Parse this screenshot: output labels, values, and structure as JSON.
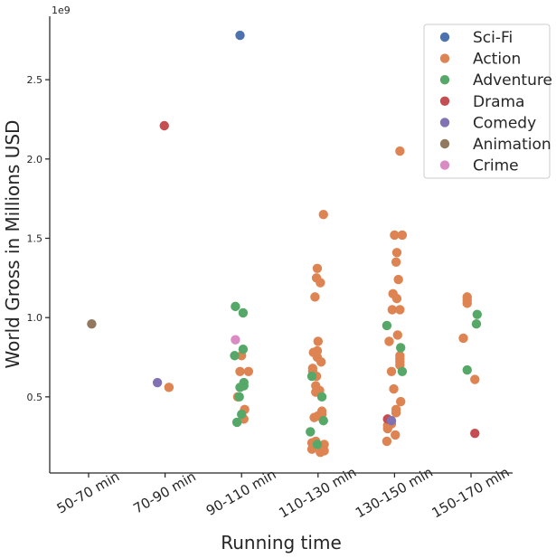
{
  "chart_data": {
    "type": "scatter",
    "style": "strip plot with jitter",
    "xlabel": "Running time",
    "ylabel": "World Gross in Millions USD",
    "y_offset_label": "1e9",
    "ylim": [
      0.02,
      2.9
    ],
    "y_unit_multiplier": 1000000000,
    "yticks": [
      0.5,
      1.0,
      1.5,
      2.0,
      2.5
    ],
    "ytick_labels": [
      "0.5",
      "1.0",
      "1.5",
      "2.0",
      "2.5"
    ],
    "categories": [
      "50-70 min",
      "70-90 min",
      "90-110 min",
      "110-130 min",
      "130-150 min",
      "150-170 min"
    ],
    "grid": false,
    "legend_position": "top-right",
    "colors": {
      "Sci-Fi": "#4c72b0",
      "Action": "#dd8452",
      "Adventure": "#55a868",
      "Drama": "#c44e52",
      "Comedy": "#8172b3",
      "Animation": "#937860",
      "Crime": "#da8bc3"
    },
    "series": [
      {
        "name": "Sci-Fi",
        "points": [
          {
            "x": "90-110 min",
            "y": 2.78
          }
        ]
      },
      {
        "name": "Action",
        "points": [
          {
            "x": "70-90 min",
            "y": 0.56
          },
          {
            "x": "90-110 min",
            "y": 0.76
          },
          {
            "x": "90-110 min",
            "y": 0.66
          },
          {
            "x": "90-110 min",
            "y": 0.66
          },
          {
            "x": "90-110 min",
            "y": 0.5
          },
          {
            "x": "90-110 min",
            "y": 0.42
          },
          {
            "x": "90-110 min",
            "y": 0.36
          },
          {
            "x": "110-130 min",
            "y": 1.65
          },
          {
            "x": "110-130 min",
            "y": 1.31
          },
          {
            "x": "110-130 min",
            "y": 1.25
          },
          {
            "x": "110-130 min",
            "y": 1.22
          },
          {
            "x": "110-130 min",
            "y": 1.13
          },
          {
            "x": "110-130 min",
            "y": 0.85
          },
          {
            "x": "110-130 min",
            "y": 0.79
          },
          {
            "x": "110-130 min",
            "y": 0.78
          },
          {
            "x": "110-130 min",
            "y": 0.75
          },
          {
            "x": "110-130 min",
            "y": 0.72
          },
          {
            "x": "110-130 min",
            "y": 0.68
          },
          {
            "x": "110-130 min",
            "y": 0.66
          },
          {
            "x": "110-130 min",
            "y": 0.63
          },
          {
            "x": "110-130 min",
            "y": 0.57
          },
          {
            "x": "110-130 min",
            "y": 0.54
          },
          {
            "x": "110-130 min",
            "y": 0.53
          },
          {
            "x": "110-130 min",
            "y": 0.41
          },
          {
            "x": "110-130 min",
            "y": 0.39
          },
          {
            "x": "110-130 min",
            "y": 0.38
          },
          {
            "x": "110-130 min",
            "y": 0.37
          },
          {
            "x": "110-130 min",
            "y": 0.22
          },
          {
            "x": "110-130 min",
            "y": 0.21
          },
          {
            "x": "110-130 min",
            "y": 0.2
          },
          {
            "x": "110-130 min",
            "y": 0.17
          },
          {
            "x": "110-130 min",
            "y": 0.16
          },
          {
            "x": "110-130 min",
            "y": 0.15
          },
          {
            "x": "130-150 min",
            "y": 2.05
          },
          {
            "x": "130-150 min",
            "y": 1.52
          },
          {
            "x": "130-150 min",
            "y": 1.52
          },
          {
            "x": "130-150 min",
            "y": 1.41
          },
          {
            "x": "130-150 min",
            "y": 1.35
          },
          {
            "x": "130-150 min",
            "y": 1.24
          },
          {
            "x": "130-150 min",
            "y": 1.15
          },
          {
            "x": "130-150 min",
            "y": 1.12
          },
          {
            "x": "130-150 min",
            "y": 1.05
          },
          {
            "x": "130-150 min",
            "y": 1.05
          },
          {
            "x": "130-150 min",
            "y": 0.89
          },
          {
            "x": "130-150 min",
            "y": 0.85
          },
          {
            "x": "130-150 min",
            "y": 0.76
          },
          {
            "x": "130-150 min",
            "y": 0.74
          },
          {
            "x": "130-150 min",
            "y": 0.72
          },
          {
            "x": "130-150 min",
            "y": 0.7
          },
          {
            "x": "130-150 min",
            "y": 0.66
          },
          {
            "x": "130-150 min",
            "y": 0.55
          },
          {
            "x": "130-150 min",
            "y": 0.47
          },
          {
            "x": "130-150 min",
            "y": 0.42
          },
          {
            "x": "130-150 min",
            "y": 0.4
          },
          {
            "x": "130-150 min",
            "y": 0.36
          },
          {
            "x": "130-150 min",
            "y": 0.33
          },
          {
            "x": "130-150 min",
            "y": 0.32
          },
          {
            "x": "130-150 min",
            "y": 0.3
          },
          {
            "x": "130-150 min",
            "y": 0.26
          },
          {
            "x": "130-150 min",
            "y": 0.22
          },
          {
            "x": "150-170 min",
            "y": 1.13
          },
          {
            "x": "150-170 min",
            "y": 1.11
          },
          {
            "x": "150-170 min",
            "y": 1.09
          },
          {
            "x": "150-170 min",
            "y": 0.87
          },
          {
            "x": "150-170 min",
            "y": 0.61
          }
        ]
      },
      {
        "name": "Adventure",
        "points": [
          {
            "x": "90-110 min",
            "y": 1.07
          },
          {
            "x": "90-110 min",
            "y": 1.03
          },
          {
            "x": "90-110 min",
            "y": 0.8
          },
          {
            "x": "90-110 min",
            "y": 0.76
          },
          {
            "x": "90-110 min",
            "y": 0.59
          },
          {
            "x": "90-110 min",
            "y": 0.57
          },
          {
            "x": "90-110 min",
            "y": 0.56
          },
          {
            "x": "90-110 min",
            "y": 0.5
          },
          {
            "x": "90-110 min",
            "y": 0.39
          },
          {
            "x": "90-110 min",
            "y": 0.34
          },
          {
            "x": "110-130 min",
            "y": 0.63
          },
          {
            "x": "110-130 min",
            "y": 0.5
          },
          {
            "x": "110-130 min",
            "y": 0.35
          },
          {
            "x": "110-130 min",
            "y": 0.28
          },
          {
            "x": "110-130 min",
            "y": 0.2
          },
          {
            "x": "130-150 min",
            "y": 0.95
          },
          {
            "x": "130-150 min",
            "y": 0.81
          },
          {
            "x": "130-150 min",
            "y": 0.66
          },
          {
            "x": "150-170 min",
            "y": 1.02
          },
          {
            "x": "150-170 min",
            "y": 0.96
          },
          {
            "x": "150-170 min",
            "y": 0.67
          }
        ]
      },
      {
        "name": "Drama",
        "points": [
          {
            "x": "70-90 min",
            "y": 2.21
          },
          {
            "x": "130-150 min",
            "y": 0.36
          },
          {
            "x": "150-170 min",
            "y": 0.27
          }
        ]
      },
      {
        "name": "Comedy",
        "points": [
          {
            "x": "70-90 min",
            "y": 0.59
          },
          {
            "x": "130-150 min",
            "y": 0.35
          }
        ]
      },
      {
        "name": "Animation",
        "points": [
          {
            "x": "50-70 min",
            "y": 0.96
          }
        ]
      },
      {
        "name": "Crime",
        "points": [
          {
            "x": "90-110 min",
            "y": 0.86
          }
        ]
      }
    ]
  }
}
